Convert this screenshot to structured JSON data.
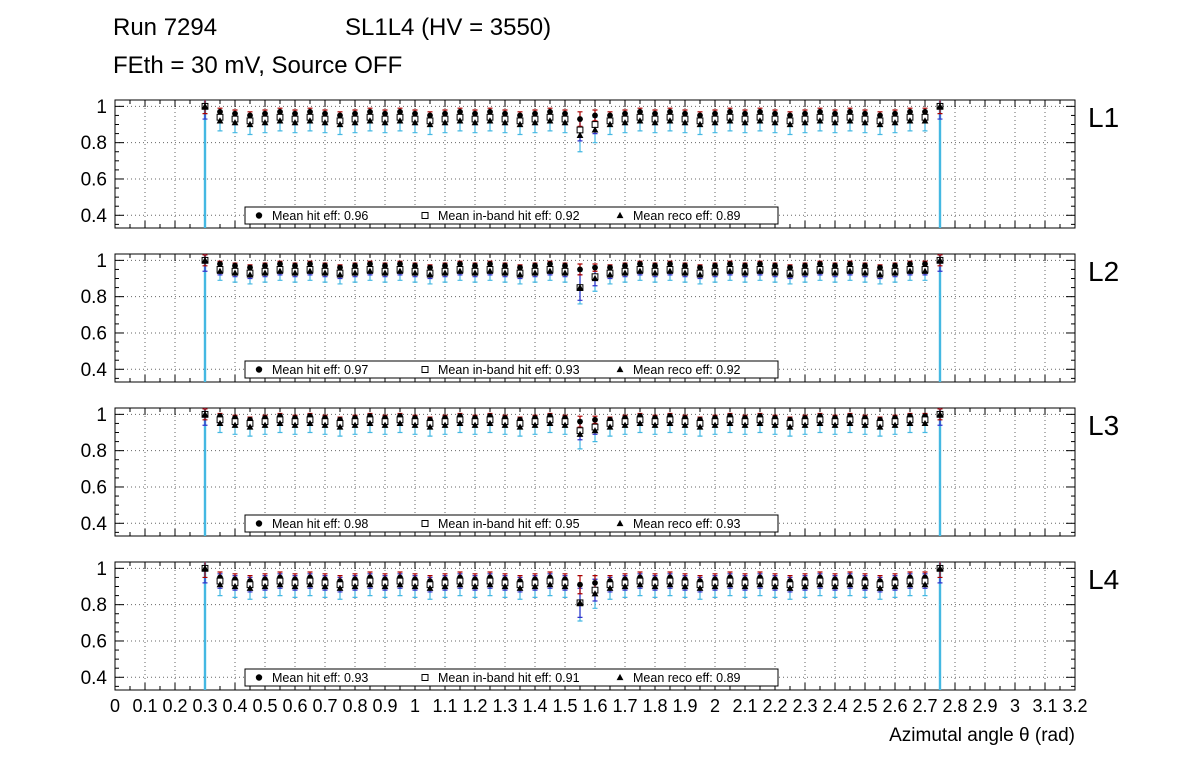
{
  "title": {
    "run": "Run 7294",
    "config": "SL1L4 (HV = 3550)",
    "sub": "FEth = 30 mV, Source OFF"
  },
  "axes": {
    "xlabel": "Azimutal angle θ (rad)",
    "xlim": [
      0,
      3.2
    ],
    "ylim": [
      0.33,
      1.035
    ],
    "xticks": [
      0,
      0.1,
      0.2,
      0.3,
      0.4,
      0.5,
      0.6,
      0.7,
      0.8,
      0.9,
      1,
      1.1,
      1.2,
      1.3,
      1.4,
      1.5,
      1.6,
      1.7,
      1.8,
      1.9,
      2,
      2.1,
      2.2,
      2.3,
      2.4,
      2.5,
      2.6,
      2.7,
      2.8,
      2.9,
      3,
      3.1,
      3.2
    ],
    "xtick_labels": [
      "0",
      "0.1",
      "0.2",
      "0.3",
      "0.4",
      "0.5",
      "0.6",
      "0.7",
      "0.8",
      "0.9",
      "1",
      "1.1",
      "1.2",
      "1.3",
      "1.4",
      "1.5",
      "1.6",
      "1.7",
      "1.8",
      "1.9",
      "2",
      "2.1",
      "2.2",
      "2.3",
      "2.4",
      "2.5",
      "2.6",
      "2.7",
      "2.8",
      "2.9",
      "3",
      "3.1",
      "3.2"
    ],
    "yticks": [
      1,
      0.8,
      0.6,
      0.4
    ],
    "ytick_labels": [
      "1",
      "0.8",
      "0.6",
      "0.4"
    ],
    "grid": "dotted"
  },
  "colors": {
    "frame": "#000000",
    "marker": "#000000",
    "hit_error": "#aa0000",
    "inband_error": "#3333cc",
    "reco_error": "#44b8e2",
    "legend_border": "#000000"
  },
  "chart_data": {
    "type": "scatter",
    "x": [
      0.3,
      0.35,
      0.4,
      0.45,
      0.5,
      0.55,
      0.6,
      0.65,
      0.7,
      0.75,
      0.8,
      0.85,
      0.9,
      0.95,
      1,
      1.05,
      1.1,
      1.15,
      1.2,
      1.25,
      1.3,
      1.35,
      1.4,
      1.45,
      1.5,
      1.55,
      1.6,
      1.65,
      1.7,
      1.75,
      1.8,
      1.85,
      1.9,
      1.95,
      2,
      2.05,
      2.1,
      2.15,
      2.2,
      2.25,
      2.3,
      2.35,
      2.4,
      2.45,
      2.5,
      2.55,
      2.6,
      2.65,
      2.7,
      2.75
    ],
    "panels": [
      {
        "label": "L1",
        "series": [
          {
            "name": "hit",
            "marker": "filled-circle",
            "color_key": "hit_error",
            "error": 0.02,
            "edge_error": 0.04,
            "error_overrides": {
              "25": 0.04,
              "26": 0.03
            },
            "values": [
              1,
              0.97,
              0.96,
              0.95,
              0.96,
              0.97,
              0.96,
              0.97,
              0.96,
              0.95,
              0.96,
              0.97,
              0.96,
              0.97,
              0.96,
              0.95,
              0.96,
              0.97,
              0.96,
              0.97,
              0.96,
              0.95,
              0.96,
              0.97,
              0.96,
              0.93,
              0.95,
              0.95,
              0.96,
              0.97,
              0.96,
              0.97,
              0.96,
              0.95,
              0.96,
              0.97,
              0.96,
              0.97,
              0.96,
              0.95,
              0.96,
              0.97,
              0.96,
              0.97,
              0.96,
              0.95,
              0.96,
              0.97,
              0.97,
              1
            ]
          },
          {
            "name": "inband",
            "marker": "open-square",
            "color_key": "inband_error",
            "error": 0.03,
            "edge_error": 0.07,
            "error_overrides": {
              "25": 0.06,
              "26": 0.05
            },
            "values": [
              1,
              0.94,
              0.93,
              0.92,
              0.93,
              0.94,
              0.93,
              0.94,
              0.93,
              0.92,
              0.93,
              0.94,
              0.93,
              0.94,
              0.93,
              0.92,
              0.93,
              0.94,
              0.93,
              0.94,
              0.93,
              0.92,
              0.93,
              0.94,
              0.93,
              0.87,
              0.9,
              0.92,
              0.93,
              0.94,
              0.93,
              0.94,
              0.93,
              0.92,
              0.93,
              0.94,
              0.93,
              0.94,
              0.93,
              0.92,
              0.93,
              0.94,
              0.93,
              0.94,
              0.93,
              0.92,
              0.93,
              0.94,
              0.94,
              1
            ]
          },
          {
            "name": "reco",
            "marker": "filled-triangle",
            "color_key": "reco_error",
            "error": 0.055,
            "edge_error": 0.7,
            "error_overrides": {
              "25": 0.09,
              "26": 0.07
            },
            "values": [
              1,
              0.92,
              0.91,
              0.9,
              0.91,
              0.92,
              0.91,
              0.92,
              0.91,
              0.9,
              0.91,
              0.92,
              0.91,
              0.92,
              0.91,
              0.9,
              0.91,
              0.92,
              0.91,
              0.92,
              0.91,
              0.9,
              0.91,
              0.92,
              0.91,
              0.84,
              0.87,
              0.9,
              0.91,
              0.92,
              0.91,
              0.92,
              0.91,
              0.9,
              0.91,
              0.92,
              0.91,
              0.92,
              0.91,
              0.9,
              0.91,
              0.92,
              0.91,
              0.92,
              0.91,
              0.9,
              0.91,
              0.92,
              0.92,
              1
            ]
          }
        ],
        "legend": [
          {
            "marker": "filled-circle",
            "label": "Mean hit  eff: 0.96"
          },
          {
            "marker": "open-square",
            "label": "Mean in-band hit eff: 0.92"
          },
          {
            "marker": "filled-triangle",
            "label": "Mean reco eff: 0.89"
          }
        ]
      },
      {
        "label": "L2",
        "series": [
          {
            "name": "hit",
            "marker": "filled-circle",
            "color_key": "hit_error",
            "error": 0.015,
            "edge_error": 0.03,
            "error_overrides": {
              "25": 0.03,
              "26": 0.02
            },
            "values": [
              1,
              0.98,
              0.97,
              0.96,
              0.97,
              0.98,
              0.97,
              0.98,
              0.97,
              0.96,
              0.97,
              0.98,
              0.97,
              0.98,
              0.97,
              0.96,
              0.97,
              0.98,
              0.97,
              0.98,
              0.97,
              0.96,
              0.97,
              0.98,
              0.97,
              0.95,
              0.96,
              0.96,
              0.97,
              0.98,
              0.97,
              0.98,
              0.97,
              0.96,
              0.97,
              0.98,
              0.97,
              0.98,
              0.97,
              0.96,
              0.97,
              0.98,
              0.97,
              0.98,
              0.97,
              0.96,
              0.97,
              0.98,
              0.98,
              1
            ]
          },
          {
            "name": "inband",
            "marker": "open-square",
            "color_key": "inband_error",
            "error": 0.03,
            "edge_error": 0.06,
            "error_overrides": {
              "25": 0.07,
              "26": 0.05
            },
            "values": [
              1,
              0.95,
              0.94,
              0.93,
              0.94,
              0.95,
              0.94,
              0.95,
              0.94,
              0.93,
              0.94,
              0.95,
              0.94,
              0.95,
              0.94,
              0.93,
              0.94,
              0.95,
              0.94,
              0.95,
              0.94,
              0.93,
              0.94,
              0.95,
              0.94,
              0.85,
              0.91,
              0.93,
              0.94,
              0.95,
              0.94,
              0.95,
              0.94,
              0.93,
              0.94,
              0.95,
              0.94,
              0.95,
              0.94,
              0.93,
              0.94,
              0.95,
              0.94,
              0.95,
              0.94,
              0.93,
              0.94,
              0.95,
              0.95,
              1
            ]
          },
          {
            "name": "reco",
            "marker": "filled-triangle",
            "color_key": "reco_error",
            "error": 0.05,
            "edge_error": 0.7,
            "error_overrides": {
              "25": 0.09,
              "26": 0.07
            },
            "values": [
              1,
              0.94,
              0.93,
              0.92,
              0.93,
              0.94,
              0.93,
              0.94,
              0.93,
              0.92,
              0.93,
              0.94,
              0.93,
              0.94,
              0.93,
              0.92,
              0.93,
              0.94,
              0.93,
              0.94,
              0.93,
              0.92,
              0.93,
              0.94,
              0.93,
              0.85,
              0.9,
              0.92,
              0.93,
              0.94,
              0.93,
              0.94,
              0.93,
              0.92,
              0.93,
              0.94,
              0.93,
              0.94,
              0.93,
              0.92,
              0.93,
              0.94,
              0.93,
              0.94,
              0.93,
              0.92,
              0.93,
              0.94,
              0.94,
              1
            ]
          }
        ],
        "legend": [
          {
            "marker": "filled-circle",
            "label": "Mean hit  eff: 0.97"
          },
          {
            "marker": "open-square",
            "label": "Mean in-band hit eff: 0.93"
          },
          {
            "marker": "filled-triangle",
            "label": "Mean reco eff: 0.92"
          }
        ]
      },
      {
        "label": "L3",
        "series": [
          {
            "name": "hit",
            "marker": "filled-circle",
            "color_key": "hit_error",
            "error": 0.015,
            "edge_error": 0.03,
            "error_overrides": {
              "25": 0.03,
              "26": 0.02
            },
            "values": [
              1,
              0.99,
              0.98,
              0.97,
              0.98,
              0.99,
              0.98,
              0.99,
              0.98,
              0.97,
              0.98,
              0.99,
              0.98,
              0.99,
              0.98,
              0.97,
              0.98,
              0.99,
              0.98,
              0.99,
              0.98,
              0.97,
              0.98,
              0.99,
              0.98,
              0.96,
              0.97,
              0.97,
              0.98,
              0.99,
              0.98,
              0.99,
              0.98,
              0.97,
              0.98,
              0.99,
              0.98,
              0.99,
              0.98,
              0.97,
              0.98,
              0.99,
              0.98,
              0.99,
              0.98,
              0.97,
              0.98,
              0.99,
              0.99,
              1
            ]
          },
          {
            "name": "inband",
            "marker": "open-square",
            "color_key": "inband_error",
            "error": 0.025,
            "edge_error": 0.06,
            "error_overrides": {
              "25": 0.05,
              "26": 0.04
            },
            "values": [
              1,
              0.97,
              0.96,
              0.95,
              0.96,
              0.97,
              0.96,
              0.97,
              0.96,
              0.95,
              0.96,
              0.97,
              0.96,
              0.97,
              0.96,
              0.95,
              0.96,
              0.97,
              0.96,
              0.97,
              0.96,
              0.95,
              0.96,
              0.97,
              0.96,
              0.91,
              0.93,
              0.95,
              0.96,
              0.97,
              0.96,
              0.97,
              0.96,
              0.95,
              0.96,
              0.97,
              0.96,
              0.97,
              0.96,
              0.95,
              0.96,
              0.97,
              0.96,
              0.97,
              0.96,
              0.95,
              0.96,
              0.97,
              0.97,
              1
            ]
          },
          {
            "name": "reco",
            "marker": "filled-triangle",
            "color_key": "reco_error",
            "error": 0.05,
            "edge_error": 0.7,
            "error_overrides": {
              "25": 0.08,
              "26": 0.06
            },
            "values": [
              1,
              0.95,
              0.94,
              0.93,
              0.94,
              0.95,
              0.94,
              0.95,
              0.94,
              0.93,
              0.94,
              0.95,
              0.94,
              0.95,
              0.94,
              0.93,
              0.94,
              0.95,
              0.94,
              0.95,
              0.94,
              0.93,
              0.94,
              0.95,
              0.94,
              0.89,
              0.91,
              0.93,
              0.94,
              0.95,
              0.94,
              0.95,
              0.94,
              0.93,
              0.94,
              0.95,
              0.94,
              0.95,
              0.94,
              0.93,
              0.94,
              0.95,
              0.94,
              0.95,
              0.94,
              0.93,
              0.94,
              0.95,
              0.95,
              1
            ]
          }
        ],
        "legend": [
          {
            "marker": "filled-circle",
            "label": "Mean hit  eff: 0.98"
          },
          {
            "marker": "open-square",
            "label": "Mean in-band hit eff: 0.95"
          },
          {
            "marker": "filled-triangle",
            "label": "Mean reco eff: 0.93"
          }
        ]
      },
      {
        "label": "L4",
        "series": [
          {
            "name": "hit",
            "marker": "filled-circle",
            "color_key": "hit_error",
            "error": 0.03,
            "edge_error": 0.05,
            "error_overrides": {
              "25": 0.05,
              "26": 0.04
            },
            "values": [
              1,
              0.95,
              0.94,
              0.93,
              0.94,
              0.95,
              0.94,
              0.95,
              0.94,
              0.93,
              0.94,
              0.95,
              0.94,
              0.95,
              0.94,
              0.93,
              0.94,
              0.95,
              0.94,
              0.95,
              0.94,
              0.93,
              0.94,
              0.95,
              0.94,
              0.91,
              0.92,
              0.93,
              0.94,
              0.95,
              0.94,
              0.95,
              0.94,
              0.93,
              0.94,
              0.95,
              0.94,
              0.95,
              0.94,
              0.93,
              0.94,
              0.95,
              0.94,
              0.95,
              0.94,
              0.93,
              0.94,
              0.95,
              0.95,
              1
            ]
          },
          {
            "name": "inband",
            "marker": "open-square",
            "color_key": "inband_error",
            "error": 0.04,
            "edge_error": 0.08,
            "error_overrides": {
              "25": 0.08,
              "26": 0.06
            },
            "values": [
              1,
              0.93,
              0.92,
              0.91,
              0.92,
              0.93,
              0.92,
              0.93,
              0.92,
              0.91,
              0.92,
              0.93,
              0.92,
              0.93,
              0.92,
              0.91,
              0.92,
              0.93,
              0.92,
              0.93,
              0.92,
              0.91,
              0.92,
              0.93,
              0.92,
              0.81,
              0.88,
              0.91,
              0.92,
              0.93,
              0.92,
              0.93,
              0.92,
              0.91,
              0.92,
              0.93,
              0.92,
              0.93,
              0.92,
              0.91,
              0.92,
              0.93,
              0.92,
              0.93,
              0.92,
              0.91,
              0.92,
              0.93,
              0.93,
              1
            ]
          },
          {
            "name": "reco",
            "marker": "filled-triangle",
            "color_key": "reco_error",
            "error": 0.06,
            "edge_error": 0.7,
            "error_overrides": {
              "25": 0.1,
              "26": 0.08
            },
            "values": [
              1,
              0.91,
              0.9,
              0.89,
              0.9,
              0.91,
              0.9,
              0.91,
              0.9,
              0.89,
              0.9,
              0.91,
              0.9,
              0.91,
              0.9,
              0.89,
              0.9,
              0.91,
              0.9,
              0.91,
              0.9,
              0.89,
              0.9,
              0.91,
              0.9,
              0.81,
              0.86,
              0.89,
              0.9,
              0.91,
              0.9,
              0.91,
              0.9,
              0.89,
              0.9,
              0.91,
              0.9,
              0.91,
              0.9,
              0.89,
              0.9,
              0.91,
              0.9,
              0.91,
              0.9,
              0.89,
              0.9,
              0.91,
              0.91,
              1
            ]
          }
        ],
        "legend": [
          {
            "marker": "filled-circle",
            "label": "Mean hit  eff: 0.93"
          },
          {
            "marker": "open-square",
            "label": "Mean in-band hit eff: 0.91"
          },
          {
            "marker": "filled-triangle",
            "label": "Mean reco eff: 0.89"
          }
        ]
      }
    ]
  }
}
